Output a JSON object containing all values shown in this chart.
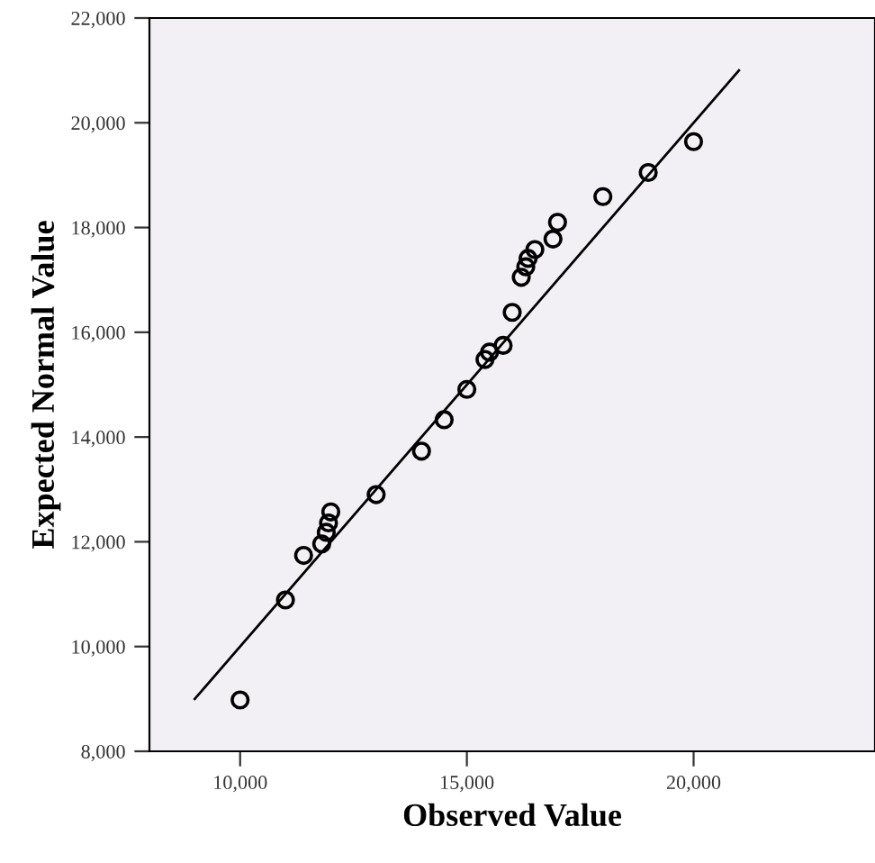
{
  "chart_data": {
    "type": "scatter",
    "xlabel": "Observed Value",
    "ylabel": "Expected Normal Value",
    "xlim": [
      8000,
      24000
    ],
    "xticks": [
      {
        "value": 10000,
        "label": "10,000"
      },
      {
        "value": 15000,
        "label": "15,000"
      },
      {
        "value": 20000,
        "label": "20,000"
      }
    ],
    "ylim": [
      8000,
      22000
    ],
    "yticks": [
      {
        "value": 8000,
        "label": "8,000"
      },
      {
        "value": 10000,
        "label": "10,000"
      },
      {
        "value": 12000,
        "label": "12,000"
      },
      {
        "value": 14000,
        "label": "14,000"
      },
      {
        "value": 16000,
        "label": "16,000"
      },
      {
        "value": 18000,
        "label": "18,000"
      },
      {
        "value": 20000,
        "label": "20,000"
      },
      {
        "value": 22000,
        "label": "22,000"
      }
    ],
    "grid": false,
    "legend": false,
    "series": [
      {
        "marker": "circle",
        "color": "#000000",
        "x": [
          10000,
          11000,
          11400,
          11800,
          11900,
          11950,
          12000,
          13000,
          14000,
          14500,
          15000,
          15400,
          15500,
          15800,
          16000,
          16200,
          16300,
          16350,
          16500,
          16900,
          17000,
          18000,
          19000,
          20000
        ],
        "values": [
          8980,
          10890,
          11740,
          11960,
          12180,
          12360,
          12570,
          12900,
          13730,
          14330,
          14910,
          15480,
          15620,
          15750,
          16380,
          17050,
          17250,
          17410,
          17580,
          17780,
          18100,
          18590,
          19050,
          19640
        ]
      },
      {
        "type": "line",
        "marker": "none",
        "color": "#000000",
        "x": [
          9000,
          21000
        ],
        "values": [
          9000,
          21000
        ]
      }
    ]
  }
}
